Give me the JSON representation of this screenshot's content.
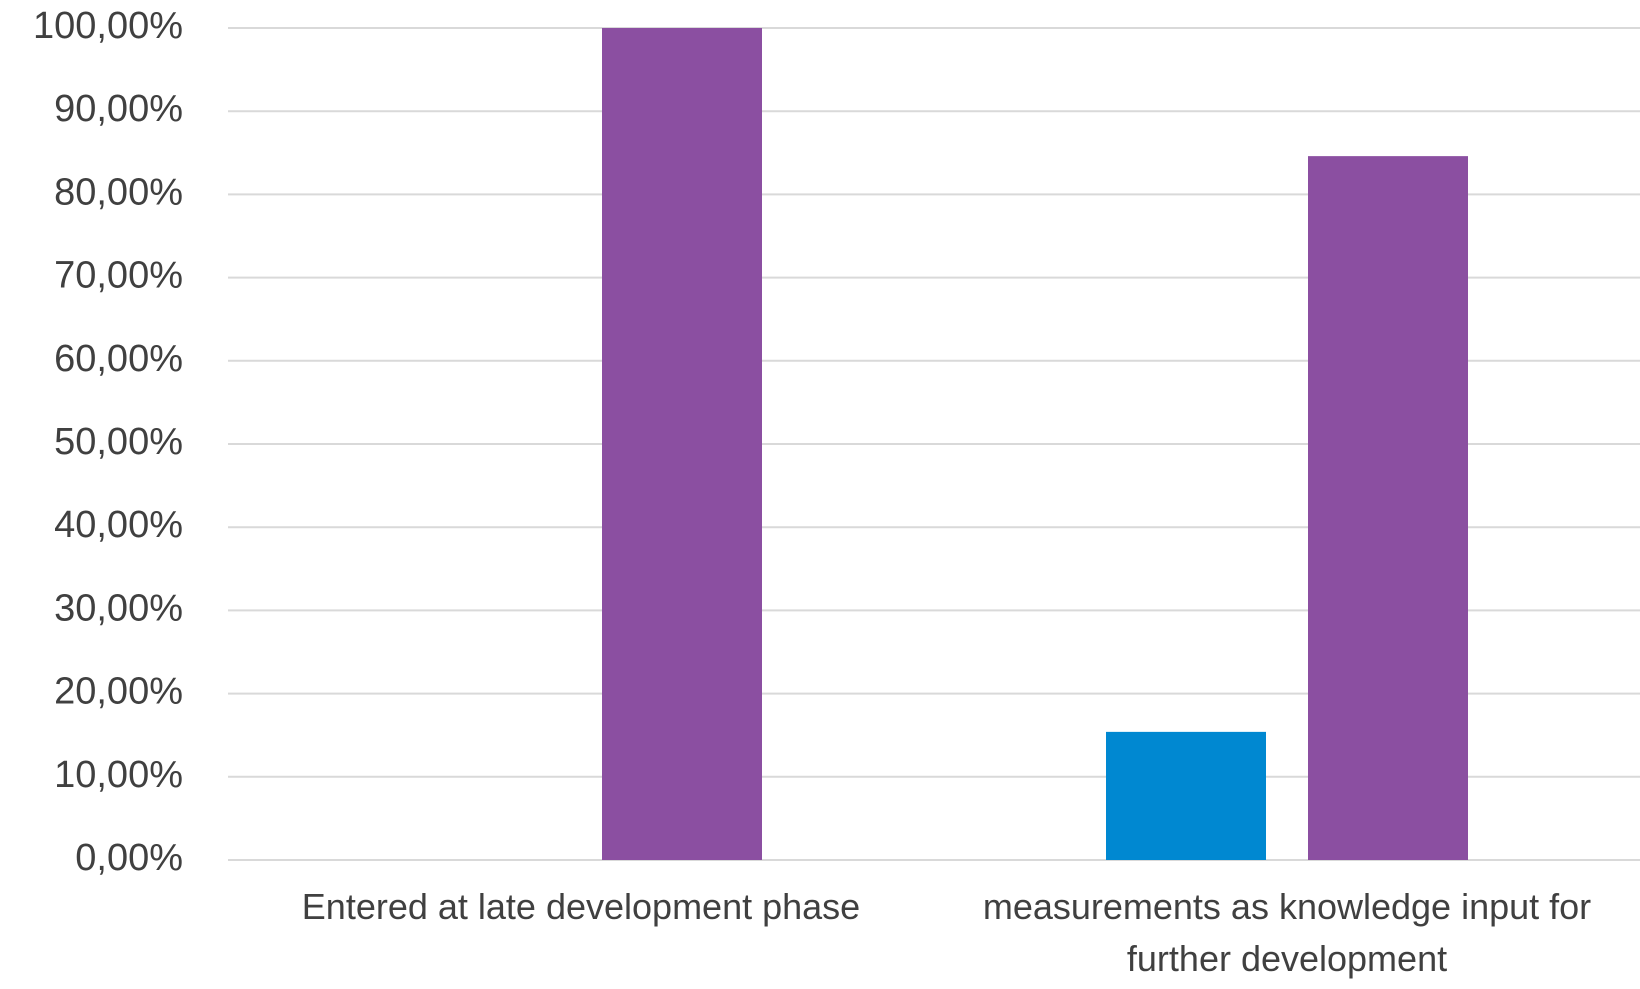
{
  "chart_data": {
    "type": "bar",
    "title": "",
    "xlabel": "",
    "ylabel": "",
    "ylim": [
      0,
      100
    ],
    "yticks": [
      "0,00%",
      "10,00%",
      "20,00%",
      "30,00%",
      "40,00%",
      "50,00%",
      "60,00%",
      "70,00%",
      "80,00%",
      "90,00%",
      "100,00%"
    ],
    "categories": [
      [
        "Entered at late development phase"
      ],
      [
        "measurements as knowledge input for",
        "further development"
      ]
    ],
    "series": [
      {
        "color": "#0088d1",
        "values": [
          0,
          15.4
        ]
      },
      {
        "color": "#8b4fa1",
        "values": [
          100,
          84.6
        ]
      }
    ],
    "grid": true,
    "legend": "none"
  }
}
